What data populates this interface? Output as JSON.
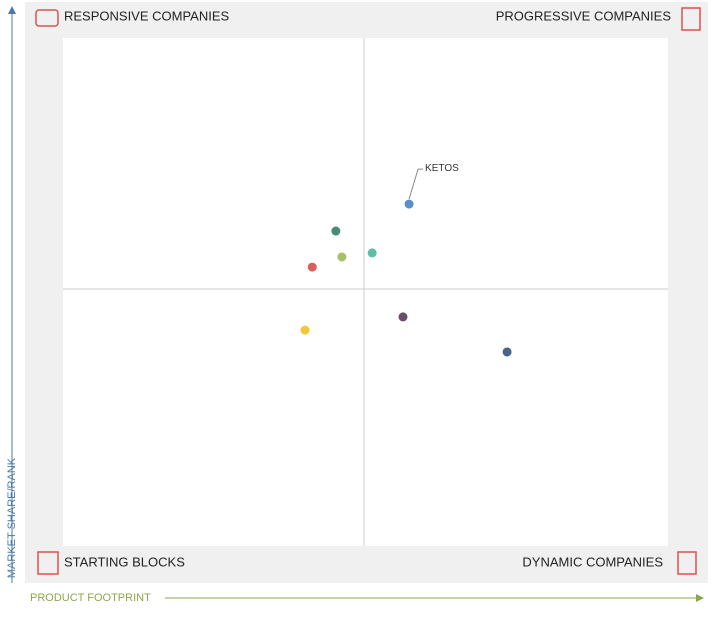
{
  "chart_data": {
    "type": "scatter",
    "quadrants": {
      "top_left": "RESPONSIVE COMPANIES",
      "top_right": "PROGRESSIVE COMPANIES",
      "bottom_left": "STARTING BLOCKS",
      "bottom_right": "DYNAMIC COMPANIES"
    },
    "y_label": "MARKET SHARE/RANK",
    "x_label": "PRODUCT FOOTPRINT",
    "xlim": [
      0,
      100
    ],
    "ylim": [
      0,
      100
    ],
    "points": [
      {
        "label": "KETOS",
        "x": 57.2,
        "y": 67.3,
        "color": "#5b8fc9"
      },
      {
        "x": 45.1,
        "y": 62.0,
        "color": "#4a8a78"
      },
      {
        "x": 46.1,
        "y": 56.9,
        "color": "#a8c06a"
      },
      {
        "x": 51.1,
        "y": 57.7,
        "color": "#5bbfa8"
      },
      {
        "x": 41.2,
        "y": 54.9,
        "color": "#d9605a"
      },
      {
        "x": 40.0,
        "y": 42.5,
        "color": "#f2c83a"
      },
      {
        "x": 56.2,
        "y": 45.1,
        "color": "#6a4f6a"
      },
      {
        "x": 73.4,
        "y": 38.2,
        "color": "#4a6584"
      }
    ]
  }
}
